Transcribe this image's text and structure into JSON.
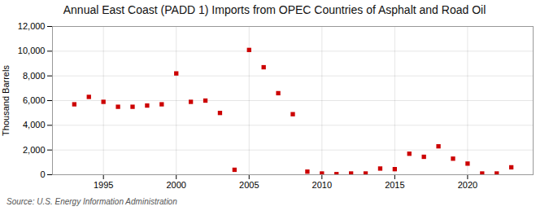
{
  "chart_data": {
    "type": "scatter",
    "title": "Annual East Coast (PADD 1) Imports from OPEC Countries of Asphalt and Road Oil",
    "ylabel": "Thousand Barrels",
    "source": "Source: U.S. Energy Information Administration",
    "x": [
      1993,
      1994,
      1995,
      1996,
      1997,
      1998,
      1999,
      2000,
      2001,
      2002,
      2003,
      2004,
      2005,
      2006,
      2007,
      2008,
      2009,
      2010,
      2011,
      2012,
      2013,
      2014,
      2015,
      2016,
      2017,
      2018,
      2019,
      2020,
      2021,
      2022,
      2023
    ],
    "values": [
      5700,
      6300,
      5900,
      5500,
      5500,
      5600,
      5700,
      8200,
      5900,
      6000,
      5000,
      400,
      10100,
      8700,
      6600,
      4900,
      250,
      100,
      50,
      100,
      100,
      500,
      450,
      1700,
      1450,
      2300,
      1300,
      900,
      100,
      100,
      600
    ],
    "color": "#cc0000",
    "marker": "square",
    "xlim": [
      1991.5,
      2024.5
    ],
    "xticks": [
      1995,
      2000,
      2005,
      2010,
      2015,
      2020
    ],
    "ylim": [
      0,
      12000
    ],
    "yticks": [
      0,
      {
        "value": 2000,
        "label": "2,000"
      },
      {
        "value": 4000,
        "label": "4,000"
      },
      {
        "value": 6000,
        "label": "6,000"
      },
      {
        "value": 8000,
        "label": "8,000"
      },
      {
        "value": 10000,
        "label": "10,000"
      },
      {
        "value": 12000,
        "label": "12,000"
      }
    ],
    "grid": true
  }
}
